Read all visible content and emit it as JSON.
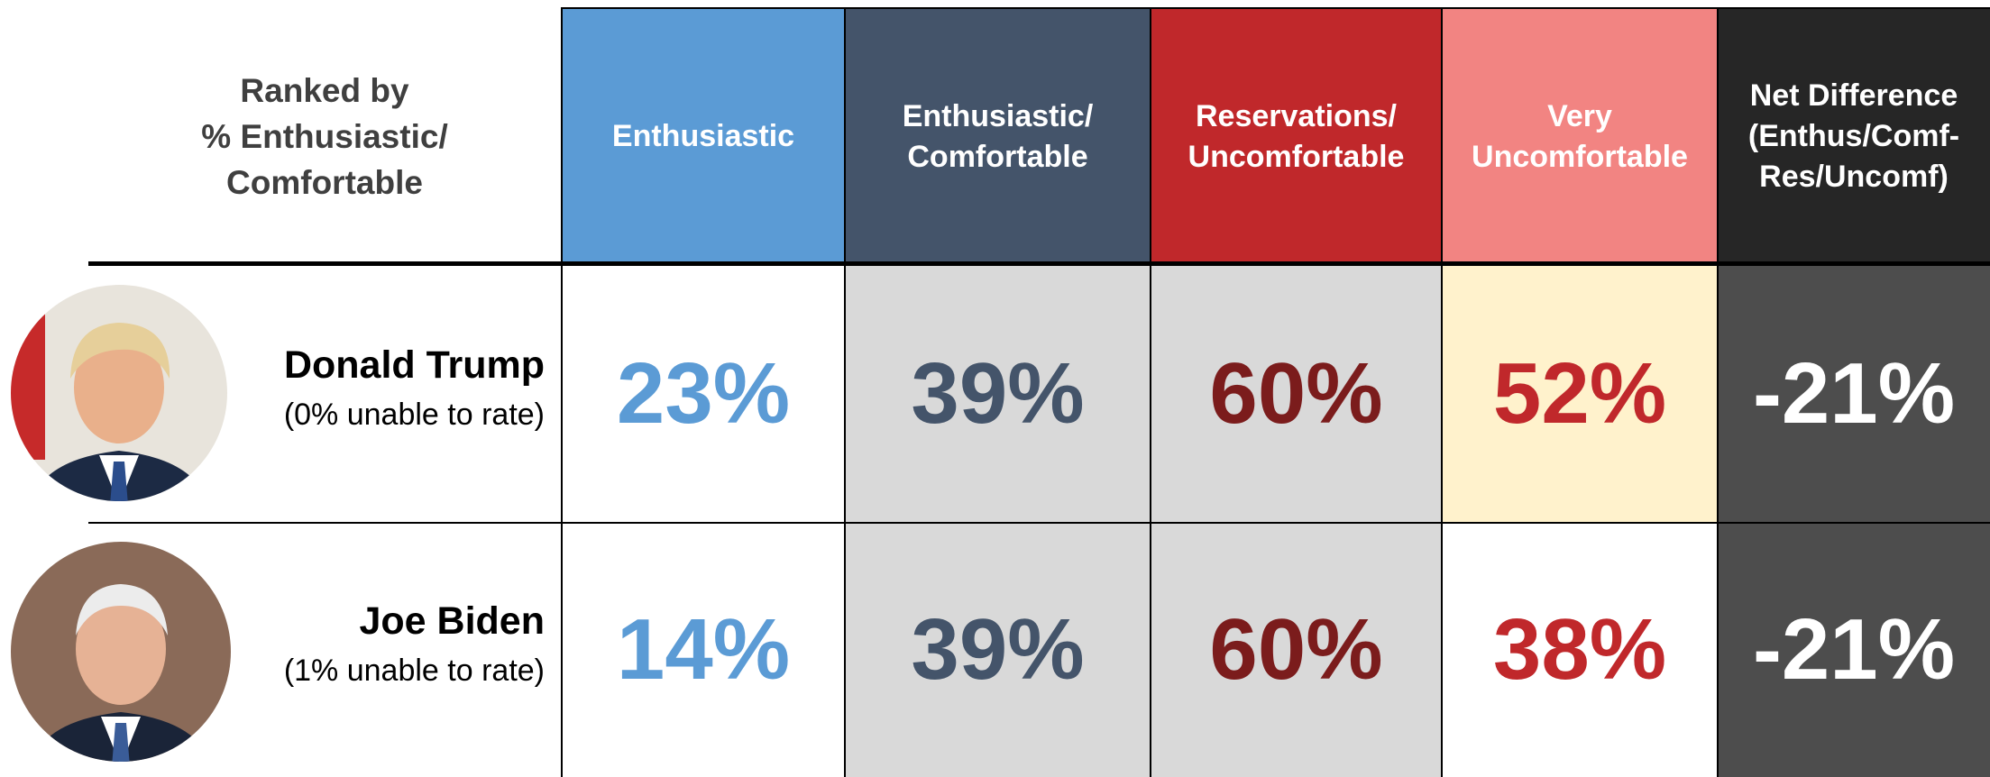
{
  "header": {
    "title": "Ranked by\n% Enthusiastic/\nComfortable",
    "columns": [
      "Enthusiastic",
      "Enthusiastic/\nComfortable",
      "Reservations/\nUncomfortable",
      "Very\nUncomfortable",
      "Net Difference\n(Enthus/Comf-\nRes/Uncomf)"
    ]
  },
  "rows": [
    {
      "name": "Donald Trump",
      "note": "(0% unable to rate)",
      "values": [
        "23%",
        "39%",
        "60%",
        "52%",
        "-21%"
      ]
    },
    {
      "name": "Joe Biden",
      "note": "(1% unable to rate)",
      "values": [
        "14%",
        "39%",
        "60%",
        "38%",
        "-21%"
      ]
    }
  ]
}
